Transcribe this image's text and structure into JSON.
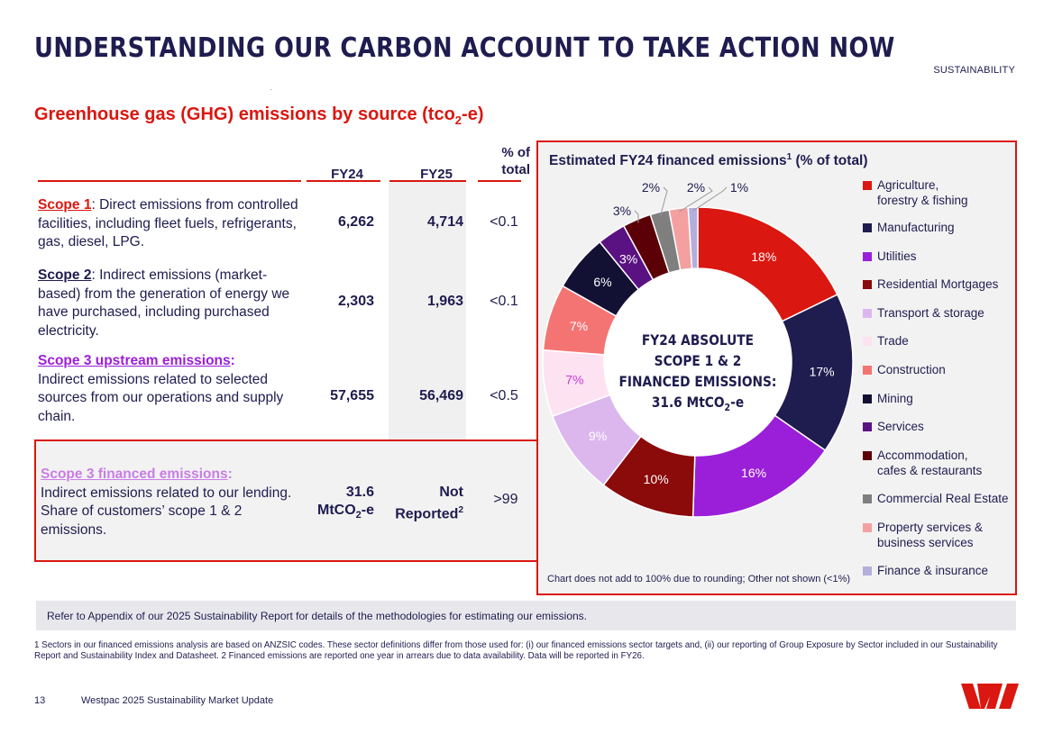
{
  "header": {
    "title": "UNDERSTANDING OUR CARBON ACCOUNT TO TAKE ACTION NOW",
    "section_tag": "SUSTAINABILITY"
  },
  "ghg": {
    "title_main": "Greenhouse gas (GHG) emissions by source (tco",
    "title_sub": "2",
    "title_end": "-e)",
    "columns": {
      "fy24": "FY24",
      "fy25": "FY25",
      "pct_line1": "% of",
      "pct_line2": "total"
    },
    "rows": [
      {
        "label": "Scope 1",
        "colon": ":",
        "text": " Direct emissions from controlled facilities, including fleet fuels, refrigerants, gas, diesel, LPG.",
        "fy24": "6,262",
        "fy25": "4,714",
        "pct": "<0.1"
      },
      {
        "label": "Scope 2",
        "colon": ":",
        "text": " Indirect emissions (market-based) from the generation of energy we have purchased, including purchased electricity.",
        "fy24": "2,303",
        "fy25": "1,963",
        "pct": "<0.1"
      },
      {
        "label": "Scope 3 upstream emissions",
        "colon": ":",
        "text": "Indirect emissions related to selected sources from our operations and supply chain.",
        "fy24": "57,655",
        "fy25": "56,469",
        "pct": "<0.5"
      },
      {
        "label": "Scope 3 financed emissions",
        "colon": ":",
        "text": "Indirect emissions related to our lending. Share of customers’ scope 1 & 2 emissions.",
        "fy24_line1": "31.6",
        "fy24_line2a": "MtCO",
        "fy24_line2sub": "2",
        "fy24_line2b": "-e",
        "fy25_line1": "Not",
        "fy25_line2": "Reported",
        "fy25_sup": "2",
        "pct": ">99"
      }
    ]
  },
  "donut": {
    "title": "Estimated FY24 financed emissions",
    "title_sup": "1",
    "title_end": " (% of total)",
    "center_line1": "FY24 ABSOLUTE",
    "center_line2": "SCOPE 1 & 2",
    "center_line3": "FINANCED EMISSIONS:",
    "center_line4a": "31.6 MtCO",
    "center_line4sub": "2",
    "center_line4b": "-e",
    "note": "Chart does not add to 100% due to rounding; Other not shown (<1%)"
  },
  "chart_data": {
    "type": "pie",
    "title": "Estimated FY24 financed emissions1 (% of total)",
    "categories": [
      "Agriculture, forestry & fishing",
      "Manufacturing",
      "Utilities",
      "Residential Mortgages",
      "Transport & storage",
      "Trade",
      "Construction",
      "Mining",
      "Services",
      "Accommodation, cafes & restaurants",
      "Commercial Real Estate",
      "Property services & business services",
      "Finance & insurance"
    ],
    "values": [
      18,
      17,
      16,
      10,
      9,
      7,
      7,
      6,
      3,
      3,
      2,
      2,
      1
    ],
    "labels": [
      "18%",
      "17%",
      "16%",
      "10%",
      "9%",
      "7%",
      "7%",
      "6%",
      "3%",
      "3%",
      "2%",
      "2%",
      "1%"
    ],
    "colors": [
      "#da1710",
      "#1f1c4f",
      "#9b1fd8",
      "#8b0a0a",
      "#dcb7ee",
      "#fde2f2",
      "#f47474",
      "#121033",
      "#5a1283",
      "#5c0008",
      "#7f7f7f",
      "#f4a0a0",
      "#b4aedc"
    ],
    "label_colors": [
      "#ffffff",
      "#ffffff",
      "#ffffff",
      "#ffffff",
      "#ffffff",
      "#c63ad8",
      "#ffffff",
      "#ffffff",
      "#ffffff",
      "#5c0008",
      "#1f1c4f",
      "#1f1c4f",
      "#1f1c4f"
    ],
    "legend": "right"
  },
  "footer": {
    "refer": "Refer to Appendix of our 2025 Sustainability Report for details of the methodologies for estimating our emissions.",
    "footnote": "1 Sectors in our financed emissions analysis are based on ANZSIC codes. These sector definitions differ from those used for: (i) our financed emissions sector targets and, (ii) our reporting of Group Exposure by Sector included in our Sustainability Report and Sustainability Index and Datasheet. 2 Financed emissions are reported one year in arrears due to data availability. Data will be reported in FY26.",
    "page_number": "13",
    "doc_title": "Westpac 2025 Sustainability Market Update"
  },
  "colors": {
    "brand_red": "#da1710",
    "navy": "#1f1c4f",
    "scope2_color": "#1f1c4f",
    "scope3_upstream_color": "#9b1fd8",
    "scope3_financed_color": "#c97de6"
  },
  "logo": {
    "name": "westpac-logo",
    "text": "W"
  }
}
